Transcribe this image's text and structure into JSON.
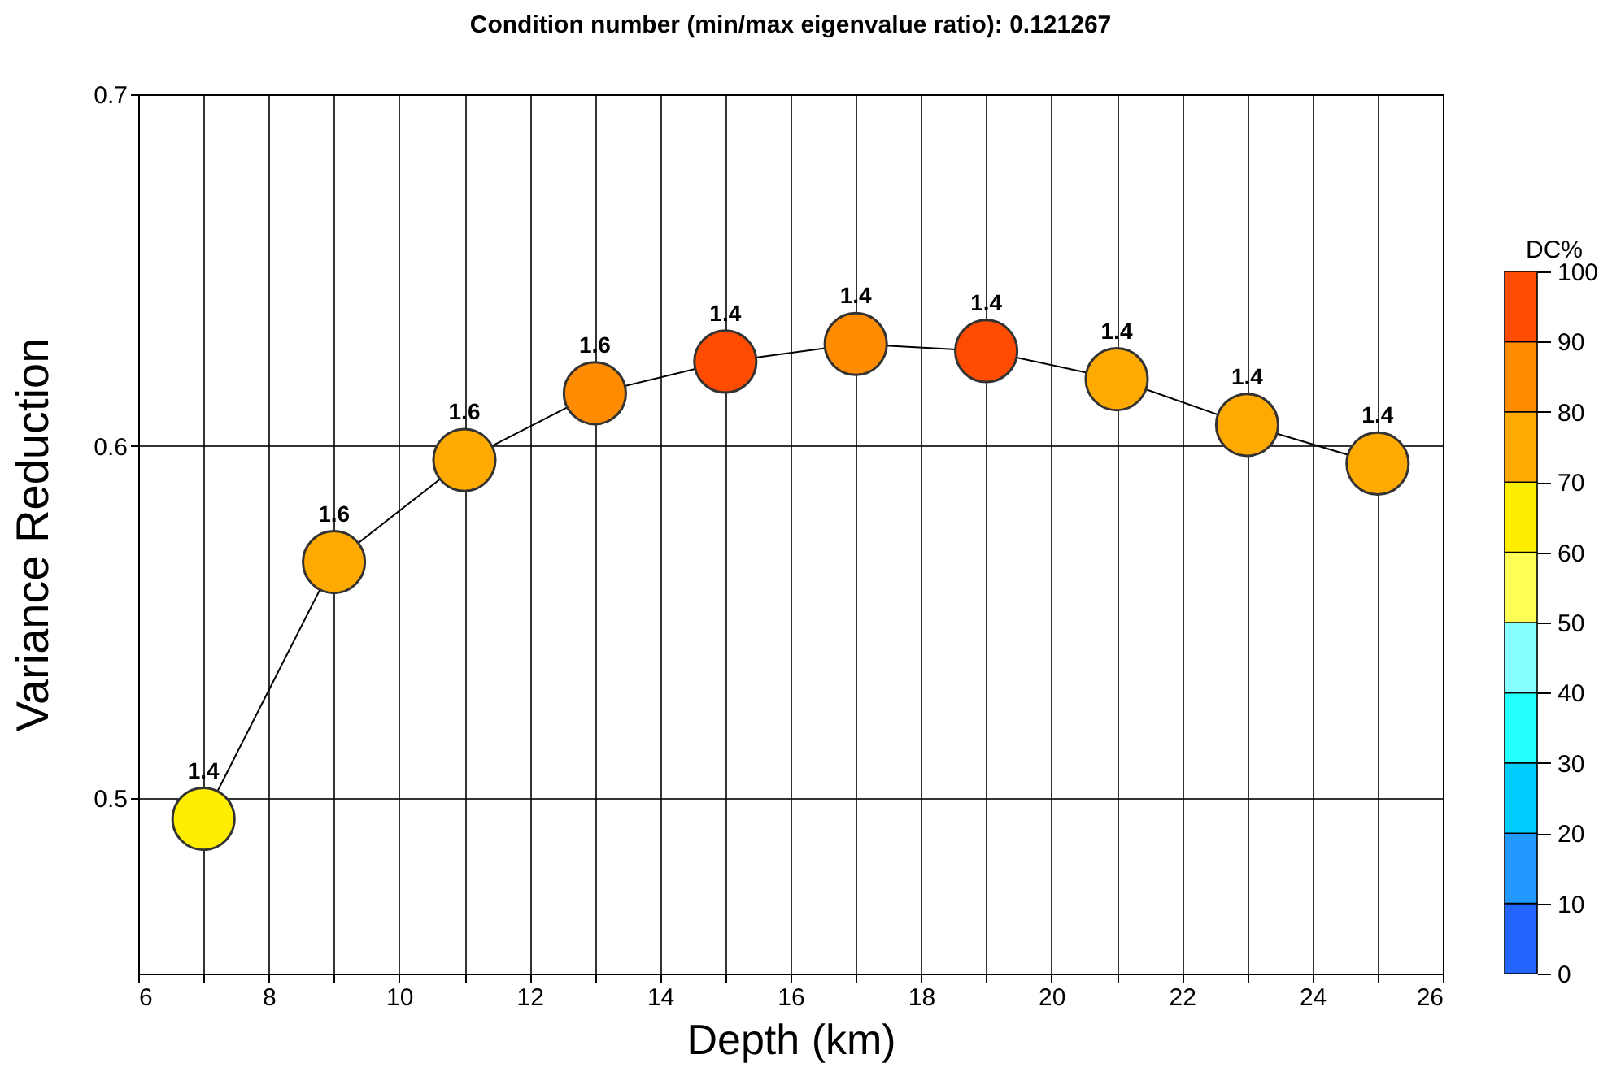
{
  "chart_data": {
    "type": "line",
    "title": "Condition number (min/max eigenvalue ratio):   0.121267",
    "xlabel": "Depth (km)",
    "ylabel": "Variance Reduction",
    "clabel": "DC%",
    "x": [
      7,
      9,
      11,
      13,
      15,
      17,
      19,
      21,
      23,
      25
    ],
    "series": [
      {
        "color": "#000000",
        "marker": "circle",
        "values": [
          0.494,
          0.567,
          0.596,
          0.615,
          0.624,
          0.629,
          0.627,
          0.619,
          0.606,
          0.595
        ],
        "colors": [
          "#ffee00",
          "#ffaa00",
          "#ffaa00",
          "#ff8c00",
          "#ff4c00",
          "#ff8c00",
          "#ff4c00",
          "#ffaa00",
          "#ffaa00",
          "#ffaa00"
        ]
      }
    ],
    "colors": [
      "#2266ff",
      "#2299ff",
      "#00ccff",
      "#22ffff",
      "#88ffff",
      "#ffff55",
      "#ffee00",
      "#ffaa00",
      "#ff8c00",
      "#ff4c00"
    ],
    "clim": [
      0,
      100
    ],
    "cticks": [
      0,
      10,
      20,
      30,
      40,
      50,
      60,
      70,
      80,
      90,
      100
    ],
    "xlim": [
      6,
      26
    ],
    "xticks": [
      6,
      {
        "value": 7,
        "label": null
      },
      8,
      {
        "value": 9,
        "label": null
      },
      10,
      {
        "value": 11,
        "label": null
      },
      12,
      {
        "value": 13,
        "label": null
      },
      14,
      {
        "value": 15,
        "label": null
      },
      16,
      {
        "value": 17,
        "label": null
      },
      18,
      {
        "value": 19,
        "label": null
      },
      20,
      {
        "value": 21,
        "label": null
      },
      22,
      {
        "value": 23,
        "label": null
      },
      24,
      {
        "value": 25,
        "label": null
      },
      26
    ],
    "ylim": [
      0.45,
      0.7
    ],
    "yticks": [
      0.5,
      0.6,
      0.7
    ],
    "grid": true,
    "annotations": [
      {
        "text": "1.4",
        "x": 7,
        "y": 0.494
      },
      {
        "text": "1.6",
        "x": 9,
        "y": 0.567
      },
      {
        "text": "1.6",
        "x": 11,
        "y": 0.596
      },
      {
        "text": "1.6",
        "x": 13,
        "y": 0.615
      },
      {
        "text": "1.4",
        "x": 15,
        "y": 0.624
      },
      {
        "text": "1.4",
        "x": 17,
        "y": 0.629
      },
      {
        "text": "1.4",
        "x": 19,
        "y": 0.627
      },
      {
        "text": "1.4",
        "x": 21,
        "y": 0.619
      },
      {
        "text": "1.4",
        "x": 23,
        "y": 0.606
      },
      {
        "text": "1.4",
        "x": 25,
        "y": 0.595
      }
    ]
  }
}
